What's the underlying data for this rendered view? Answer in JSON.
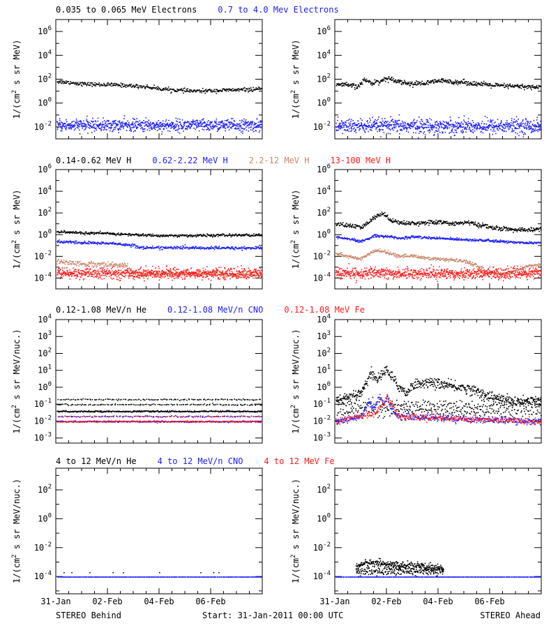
{
  "colors": {
    "black": "#000000",
    "blue": "#1c1cff",
    "brown": "#c8876a",
    "red": "#ff1a1a"
  },
  "footer": {
    "left": "STEREO Behind",
    "center": "Start: 31-Jan-2011 00:00 UTC",
    "right": "STEREO Ahead"
  },
  "x_ticks": [
    "31-Jan",
    "02-Feb",
    "04-Feb",
    "06-Feb"
  ],
  "rows": [
    {
      "legend": [
        {
          "text": "0.035 to 0.065 MeV Electrons",
          "color": "black"
        },
        {
          "text": "0.7 to 4.0 Mev Electrons",
          "color": "blue"
        }
      ],
      "ylabel_pre": "1/(cm",
      "ylabel_sup": "2",
      "ylabel_post": " s sr MeV)",
      "ylog": [
        -3,
        7
      ],
      "yticks": [
        {
          "exp": -2
        },
        {
          "exp": 0
        },
        {
          "exp": 2
        },
        {
          "exp": 4
        },
        {
          "exp": 6
        }
      ]
    },
    {
      "legend": [
        {
          "text": "0.14-0.62 MeV H",
          "color": "black"
        },
        {
          "text": "0.62-2.22 MeV H",
          "color": "blue"
        },
        {
          "text": "2.2-12 MeV H",
          "color": "brown"
        },
        {
          "text": "13-100 MeV H",
          "color": "red"
        }
      ],
      "ylabel_pre": "1/(cm",
      "ylabel_sup": "2",
      "ylabel_post": " s sr MeV)",
      "ylog": [
        -5,
        6
      ],
      "yticks": [
        {
          "exp": -4
        },
        {
          "exp": -2
        },
        {
          "exp": 0
        },
        {
          "exp": 2
        },
        {
          "exp": 4
        },
        {
          "exp": 6
        }
      ]
    },
    {
      "legend": [
        {
          "text": "0.12-1.08 MeV/n He",
          "color": "black"
        },
        {
          "text": "0.12-1.08 MeV/n CNO",
          "color": "blue"
        },
        {
          "text": "0.12-1.08 MeV Fe",
          "color": "red"
        }
      ],
      "ylabel_pre": "1/(cm",
      "ylabel_sup": "2",
      "ylabel_post": " s sr MeV/nuc.)",
      "ylog": [
        -3.3,
        4
      ],
      "yticks": [
        {
          "exp": -3
        },
        {
          "exp": -2
        },
        {
          "exp": -1
        },
        {
          "exp": 0
        },
        {
          "exp": 1
        },
        {
          "exp": 2
        },
        {
          "exp": 3
        },
        {
          "exp": 4
        }
      ]
    },
    {
      "legend": [
        {
          "text": "4 to 12 MeV/n He",
          "color": "black"
        },
        {
          "text": "4 to 12 MeV/n CNO",
          "color": "blue"
        },
        {
          "text": "4 to 12 MeV Fe",
          "color": "red"
        }
      ],
      "ylabel_pre": "1/(cm",
      "ylabel_sup": "2",
      "ylabel_post": " s sr MeV/nuc.)",
      "ylog": [
        -5.2,
        3.5
      ],
      "yticks": [
        {
          "exp": -4
        },
        {
          "exp": -2
        },
        {
          "exp": 0
        },
        {
          "exp": 2
        }
      ]
    }
  ],
  "chart_data": [
    {
      "panel": "behind-electrons",
      "type": "scatter",
      "x_unit": "days since 31-Jan-2011",
      "xlim": [
        0,
        8
      ],
      "y_scale": "log",
      "ylim": [
        0.001,
        10000000
      ],
      "series": [
        {
          "name": "0.035 to 0.065 MeV Electrons",
          "color": "black",
          "x": [
            0,
            0.5,
            1,
            1.5,
            2,
            2.5,
            3,
            3.5,
            4,
            4.5,
            5,
            5.5,
            6,
            6.5,
            7,
            7.5,
            8
          ],
          "y": [
            70,
            60,
            45,
            40,
            38,
            35,
            30,
            25,
            18,
            14,
            12,
            11,
            12,
            13,
            14,
            15,
            16
          ],
          "spread": 0.08,
          "n": 420
        },
        {
          "name": "0.7 to 4.0 Mev Electrons",
          "color": "blue",
          "x": [
            0,
            8
          ],
          "y": [
            0.015,
            0.015
          ],
          "spread": 0.25,
          "n": 900
        }
      ]
    },
    {
      "panel": "ahead-electrons",
      "type": "scatter",
      "x_unit": "days since 31-Jan-2011",
      "xlim": [
        0,
        8
      ],
      "y_scale": "log",
      "ylim": [
        0.001,
        10000000
      ],
      "series": [
        {
          "name": "0.035 to 0.065 MeV Electrons",
          "color": "black",
          "x": [
            0,
            0.5,
            0.9,
            1.1,
            1.4,
            1.7,
            2,
            2.3,
            2.6,
            3,
            3.5,
            4,
            4.5,
            5,
            5.5,
            6,
            6.5,
            7,
            7.5,
            8
          ],
          "y": [
            40,
            35,
            25,
            100,
            55,
            70,
            130,
            100,
            60,
            45,
            50,
            80,
            70,
            60,
            45,
            35,
            30,
            28,
            25,
            25
          ],
          "spread": 0.1,
          "n": 500
        },
        {
          "name": "0.7 to 4.0 Mev Electrons",
          "color": "blue",
          "x": [
            0,
            8
          ],
          "y": [
            0.013,
            0.013
          ],
          "spread": 0.3,
          "n": 900
        }
      ]
    },
    {
      "panel": "behind-protons",
      "type": "scatter",
      "x_unit": "days since 31-Jan-2011",
      "xlim": [
        0,
        8
      ],
      "y_scale": "log",
      "ylim": [
        1e-05,
        1000000
      ],
      "series": [
        {
          "name": "0.14-0.62 MeV H",
          "color": "black",
          "x": [
            0,
            1,
            2,
            3,
            4,
            5,
            6,
            7,
            8
          ],
          "y": [
            2,
            1.6,
            1.4,
            1.1,
            0.9,
            0.9,
            0.95,
            1,
            1
          ],
          "spread": 0.06,
          "n": 450
        },
        {
          "name": "0.62-2.22 MeV H",
          "color": "blue",
          "x": [
            0,
            1,
            2,
            3,
            3.2,
            4,
            5,
            6,
            7,
            8
          ],
          "y": [
            0.25,
            0.2,
            0.18,
            0.12,
            0.07,
            0.07,
            0.07,
            0.065,
            0.065,
            0.065
          ],
          "spread": 0.07,
          "n": 450
        },
        {
          "name": "2.2-12 MeV H",
          "color": "brown",
          "x": [
            0,
            0.5,
            1,
            1.5,
            2,
            2.7,
            3,
            3.4,
            3.6,
            4,
            5,
            6,
            7,
            8
          ],
          "y": [
            0.004,
            0.003,
            0.0022,
            0.0022,
            0.002,
            0.0016,
            0.0004,
            0.0002,
            0.0003,
            0.00025,
            0.00025,
            0.00025,
            0.0002,
            0.0002
          ],
          "spread": 0.12,
          "n": 450
        },
        {
          "name": "13-100 MeV H",
          "color": "red",
          "x": [
            0,
            8
          ],
          "y": [
            0.0003,
            0.0003
          ],
          "spread": 0.25,
          "n": 900
        }
      ]
    },
    {
      "panel": "ahead-protons",
      "type": "scatter",
      "x_unit": "days since 31-Jan-2011",
      "xlim": [
        0,
        8
      ],
      "y_scale": "log",
      "ylim": [
        1e-05,
        1000000
      ],
      "series": [
        {
          "name": "0.14-0.62 MeV H",
          "color": "black",
          "x": [
            0,
            0.5,
            1,
            1.3,
            1.5,
            1.8,
            2,
            2.2,
            2.5,
            3,
            3.5,
            4,
            4.5,
            5,
            5.5,
            6,
            6.5,
            7,
            7.5,
            8
          ],
          "y": [
            10,
            8,
            5,
            15,
            40,
            100,
            60,
            20,
            15,
            12,
            15,
            15,
            12,
            15,
            10,
            5,
            4,
            3,
            3,
            4
          ],
          "spread": 0.1,
          "n": 500
        },
        {
          "name": "0.62-2.22 MeV H",
          "color": "blue",
          "x": [
            0,
            0.5,
            1,
            1.3,
            1.5,
            2,
            2.5,
            3,
            3.5,
            4,
            4.5,
            5,
            5.5,
            6,
            6.5,
            7,
            7.5,
            8
          ],
          "y": [
            0.6,
            0.45,
            0.25,
            0.5,
            0.9,
            0.8,
            0.5,
            0.7,
            0.6,
            0.5,
            0.45,
            0.4,
            0.35,
            0.3,
            0.25,
            0.22,
            0.2,
            0.22
          ],
          "spread": 0.06,
          "n": 500
        },
        {
          "name": "2.2-12 MeV H",
          "color": "brown",
          "x": [
            0,
            0.5,
            1,
            1.3,
            1.6,
            2,
            2.5,
            3,
            3.5,
            4,
            4.5,
            5,
            5.5,
            5.8,
            6,
            6.5,
            7,
            7.5,
            8
          ],
          "y": [
            0.02,
            0.012,
            0.006,
            0.018,
            0.04,
            0.025,
            0.012,
            0.012,
            0.008,
            0.006,
            0.005,
            0.004,
            0.0015,
            0.0006,
            0.0003,
            0.0003,
            0.0005,
            0.0015,
            0.002
          ],
          "spread": 0.08,
          "n": 500
        },
        {
          "name": "13-100 MeV H",
          "color": "red",
          "x": [
            0,
            8
          ],
          "y": [
            0.0003,
            0.0003
          ],
          "spread": 0.25,
          "n": 900
        }
      ]
    },
    {
      "panel": "behind-heavy-low",
      "type": "scatter",
      "x_unit": "days since 31-Jan-2011",
      "xlim": [
        0,
        8
      ],
      "y_scale": "log",
      "ylim": [
        0.0005,
        10000
      ],
      "series": [
        {
          "name": "0.12-1.08 MeV/n He",
          "color": "black",
          "x": [
            0,
            8
          ],
          "y": [
            0.04,
            0.04
          ],
          "spread": 0.02,
          "n": 400,
          "extra_levels": [
            0.1,
            0.2
          ]
        },
        {
          "name": "0.12-1.08 MeV/n CNO",
          "color": "blue",
          "x": [
            0,
            8
          ],
          "y": [
            0.01,
            0.01
          ],
          "spread": 0.02,
          "n": 400,
          "extra_levels": [
            0.02
          ]
        },
        {
          "name": "0.12-1.08 MeV Fe",
          "color": "red",
          "x": [
            0,
            8
          ],
          "y": [
            0.01,
            0.01
          ],
          "spread": 0.02,
          "n": 250,
          "extra_levels": [
            0.02
          ]
        }
      ]
    },
    {
      "panel": "ahead-heavy-low",
      "type": "scatter",
      "x_unit": "days since 31-Jan-2011",
      "xlim": [
        0,
        8
      ],
      "y_scale": "log",
      "ylim": [
        0.0005,
        10000
      ],
      "series": [
        {
          "name": "0.12-1.08 MeV/n He",
          "color": "black",
          "x": [
            0,
            0.7,
            1,
            1.2,
            1.4,
            1.6,
            1.8,
            2,
            2.2,
            2.5,
            2.8,
            3,
            3.5,
            4,
            4.5,
            5,
            5.5,
            6,
            6.5,
            7,
            7.5,
            8
          ],
          "y": [
            0.2,
            0.25,
            0.6,
            2,
            8,
            3,
            6,
            12,
            4,
            1,
            0.5,
            1.5,
            2,
            1.8,
            1.2,
            1,
            0.6,
            0.3,
            0.2,
            0.15,
            0.15,
            0.2
          ],
          "spread": 0.15,
          "n": 600,
          "extra_levels": [
            0.04,
            0.1
          ]
        },
        {
          "name": "0.12-1.08 MeV/n CNO",
          "color": "blue",
          "x": [
            0,
            1,
            1.3,
            1.5,
            1.7,
            1.9,
            2,
            2.2,
            2.5,
            8
          ],
          "y": [
            0.01,
            0.02,
            0.15,
            0.05,
            0.3,
            0.1,
            0.3,
            0.05,
            0.02,
            0.01
          ],
          "spread": 0.1,
          "n": 500
        },
        {
          "name": "0.12-1.08 MeV Fe",
          "color": "red",
          "x": [
            0,
            1.5,
            1.8,
            2,
            2.1,
            2.3,
            2.5,
            8
          ],
          "y": [
            0.01,
            0.03,
            0.08,
            0.3,
            0.15,
            0.05,
            0.02,
            0.01
          ],
          "spread": 0.1,
          "n": 400
        }
      ]
    },
    {
      "panel": "behind-heavy-high",
      "type": "scatter",
      "x_unit": "days since 31-Jan-2011",
      "xlim": [
        0,
        8
      ],
      "y_scale": "log",
      "ylim": [
        6e-06,
        3000
      ],
      "series": [
        {
          "name": "4 to 12 MeV/n He",
          "color": "black",
          "x": [
            0.3,
            0.6,
            1.3,
            2.2,
            2.6,
            4,
            5.6,
            6.1,
            6.3
          ],
          "y": [
            0.0002,
            0.0002,
            0.0002,
            0.0002,
            0.0002,
            0.0002,
            0.0002,
            0.0002,
            0.0002
          ],
          "spread": 0,
          "n": 9
        },
        {
          "name": "4 to 12 MeV/n CNO",
          "color": "blue",
          "x": [
            0,
            8
          ],
          "y": [
            0.0001,
            0.0001
          ],
          "spread": 0,
          "n": 260
        },
        {
          "name": "4 to 12 MeV Fe",
          "color": "red",
          "x": [],
          "y": [],
          "spread": 0,
          "n": 0
        }
      ]
    },
    {
      "panel": "ahead-heavy-high",
      "type": "scatter",
      "x_unit": "days since 31-Jan-2011",
      "xlim": [
        0,
        8
      ],
      "y_scale": "log",
      "ylim": [
        6e-06,
        3000
      ],
      "series": [
        {
          "name": "4 to 12 MeV/n He",
          "color": "black",
          "x": [
            0.8,
            1,
            1.5,
            2,
            2.5,
            3,
            3.5,
            4,
            4.2
          ],
          "y": [
            0.0004,
            0.0008,
            0.001,
            0.0008,
            0.0006,
            0.0006,
            0.0005,
            0.0004,
            0.0003
          ],
          "spread": 0.12,
          "n": 300,
          "extra_levels": [
            0.0002,
            0.0003
          ]
        },
        {
          "name": "4 to 12 MeV/n CNO",
          "color": "blue",
          "x": [
            0,
            8
          ],
          "y": [
            0.0001,
            0.0001
          ],
          "spread": 0,
          "n": 260
        },
        {
          "name": "4 to 12 MeV Fe",
          "color": "red",
          "x": [],
          "y": [],
          "spread": 0,
          "n": 0
        }
      ]
    }
  ]
}
